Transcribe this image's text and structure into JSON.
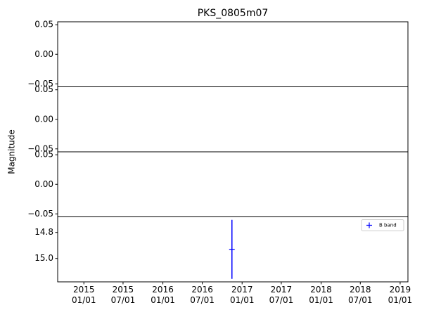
{
  "chart_data": {
    "type": "errorbar",
    "title": "PKS_0805m07",
    "y_label": "Magnitude",
    "xlim": [
      "2014-09-02",
      "2019-02-06"
    ],
    "xticks": [
      {
        "value": "2015-01-01",
        "label": "2015\n01/01"
      },
      {
        "value": "2015-07-01",
        "label": "2015\n07/01"
      },
      {
        "value": "2016-01-01",
        "label": "2016\n01/01"
      },
      {
        "value": "2016-07-01",
        "label": "2016\n07/01"
      },
      {
        "value": "2017-01-01",
        "label": "2017\n01/01"
      },
      {
        "value": "2017-07-01",
        "label": "2017\n07/01"
      },
      {
        "value": "2018-01-01",
        "label": "2018\n01/01"
      },
      {
        "value": "2018-07-01",
        "label": "2018\n07/01"
      },
      {
        "value": "2019-01-01",
        "label": "2019\n01/01"
      }
    ],
    "panels": [
      {
        "ylim": [
          -0.055,
          0.055
        ],
        "yticks": [
          {
            "value": -0.05,
            "label": "−0.05"
          },
          {
            "value": 0,
            "label": "0.00"
          },
          0.05
        ]
      },
      {
        "ylim": [
          -0.055,
          0.055
        ],
        "yticks": [
          {
            "value": -0.05,
            "label": "−0.05"
          },
          {
            "value": 0,
            "label": "0.00"
          },
          0.05
        ]
      },
      {
        "ylim": [
          -0.055,
          0.055
        ],
        "yticks": [
          {
            "value": -0.05,
            "label": "−0.05"
          },
          {
            "value": 0,
            "label": "0.00"
          },
          0.05
        ]
      },
      {
        "ylim": [
          15.18,
          14.68
        ],
        "yticks": [
          14.8,
          {
            "value": 15,
            "label": "15.0"
          }
        ],
        "legend": "upper right",
        "series": [
          {
            "name": "B band",
            "color": "#0000ff",
            "x": [
              "2016-11-15"
            ],
            "values": [
              14.93
            ],
            "errors": [
              0.227
            ]
          }
        ]
      }
    ]
  }
}
